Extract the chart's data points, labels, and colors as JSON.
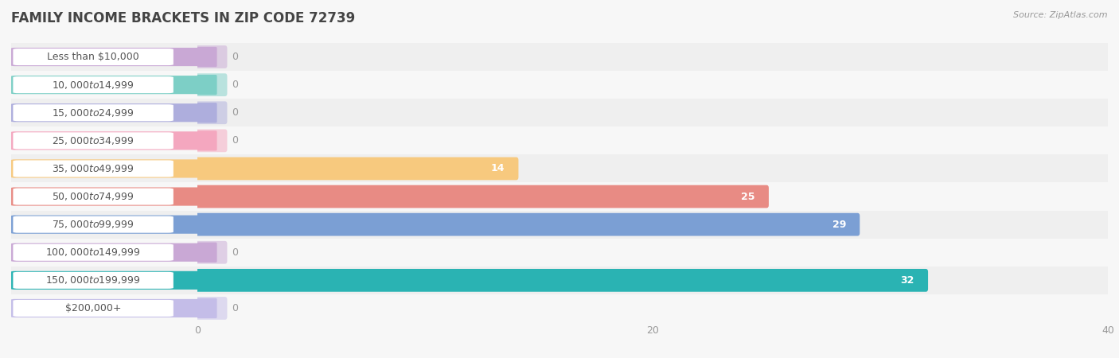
{
  "title": "FAMILY INCOME BRACKETS IN ZIP CODE 72739",
  "source": "Source: ZipAtlas.com",
  "categories": [
    "Less than $10,000",
    "$10,000 to $14,999",
    "$15,000 to $24,999",
    "$25,000 to $34,999",
    "$35,000 to $49,999",
    "$50,000 to $74,999",
    "$75,000 to $99,999",
    "$100,000 to $149,999",
    "$150,000 to $199,999",
    "$200,000+"
  ],
  "values": [
    0,
    0,
    0,
    0,
    14,
    25,
    29,
    0,
    32,
    0
  ],
  "bar_colors": [
    "#c9a8d5",
    "#7dcfc6",
    "#aeaedd",
    "#f4a7bf",
    "#f7c97e",
    "#e88b84",
    "#7b9fd4",
    "#c9a8d5",
    "#2ab3b3",
    "#c4bde8"
  ],
  "label_colors": {
    "inside": "#ffffff",
    "outside": "#888888"
  },
  "bg_color": "#f7f7f7",
  "row_bg_even": "#efefef",
  "row_bg_odd": "#f7f7f7",
  "xlim": [
    0,
    40
  ],
  "xticks": [
    0,
    20,
    40
  ],
  "title_fontsize": 12,
  "label_fontsize": 9,
  "value_fontsize": 9,
  "source_fontsize": 8
}
